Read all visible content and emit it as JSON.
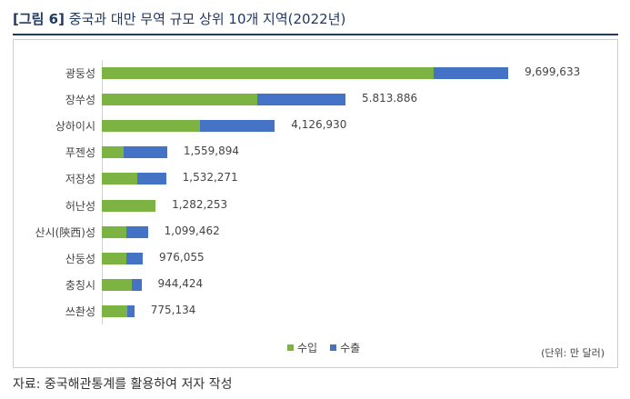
{
  "header": {
    "tag": "[그림 6]",
    "title": "중국과 대만 무역 규모 상위 10개 지역(2022년)"
  },
  "chart_data": {
    "type": "bar",
    "orientation": "horizontal",
    "stacked": true,
    "categories": [
      "광둥성",
      "장쑤성",
      "상하이시",
      "푸젠성",
      "저장성",
      "허난성",
      "산시(陝西)성",
      "산둥성",
      "충칭시",
      "쓰촨성"
    ],
    "totals_labels": [
      "9,699,633",
      "5.813.886",
      "4,126,930",
      "1,559,894",
      "1,532,271",
      "1,282,253",
      "1,099,462",
      "976,055",
      "944,424",
      "775,134"
    ],
    "totals": [
      9699633,
      5813886,
      4126930,
      1559894,
      1532271,
      1282253,
      1099462,
      976055,
      944424,
      775134
    ],
    "series": [
      {
        "name": "수입",
        "color": "#7cb342",
        "values": [
          7920000,
          3700000,
          2340000,
          510000,
          850000,
          1282253,
          590000,
          590000,
          720000,
          600000
        ]
      },
      {
        "name": "수출",
        "color": "#4472c4",
        "values": [
          1779633,
          2113886,
          1786930,
          1049894,
          682271,
          0,
          509462,
          386055,
          224424,
          175134
        ]
      }
    ],
    "xlim": [
      0,
      10000000
    ],
    "grid": false,
    "legend": "bottom",
    "unit": "(단위: 만 달러)"
  },
  "source": "자료: 중국해관통계를 활용하여 저자 작성"
}
